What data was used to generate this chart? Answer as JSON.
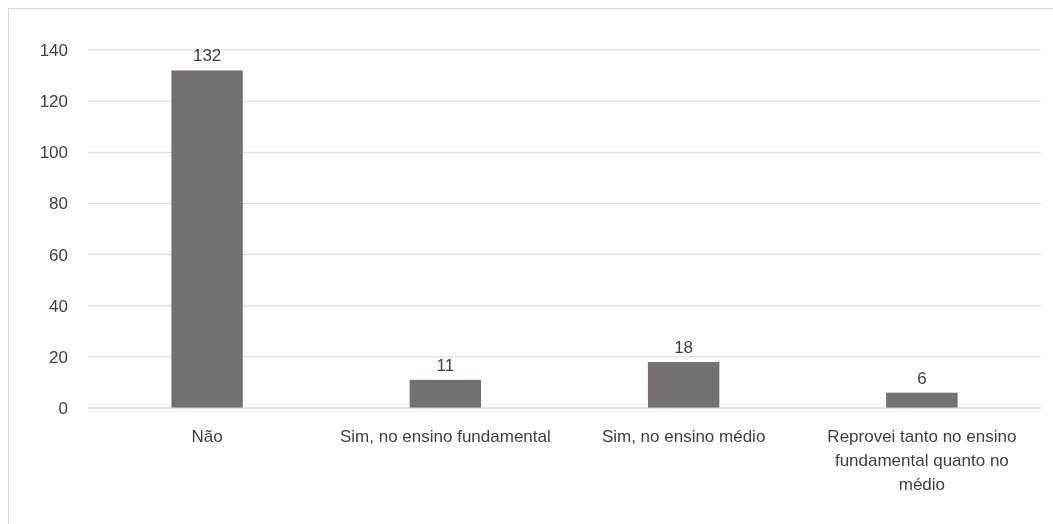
{
  "chart_data": {
    "type": "bar",
    "categories": [
      "Não",
      "Sim, no ensino fundamental",
      "Sim, no ensino médio",
      "Reprovei tanto no ensino fundamental quanto no médio"
    ],
    "values": [
      132,
      11,
      18,
      6
    ],
    "color": "#767171",
    "ylim": [
      0,
      140
    ],
    "yticks": [
      0,
      20,
      40,
      60,
      80,
      100,
      120,
      140
    ],
    "grid": "y",
    "data_labels": true
  }
}
